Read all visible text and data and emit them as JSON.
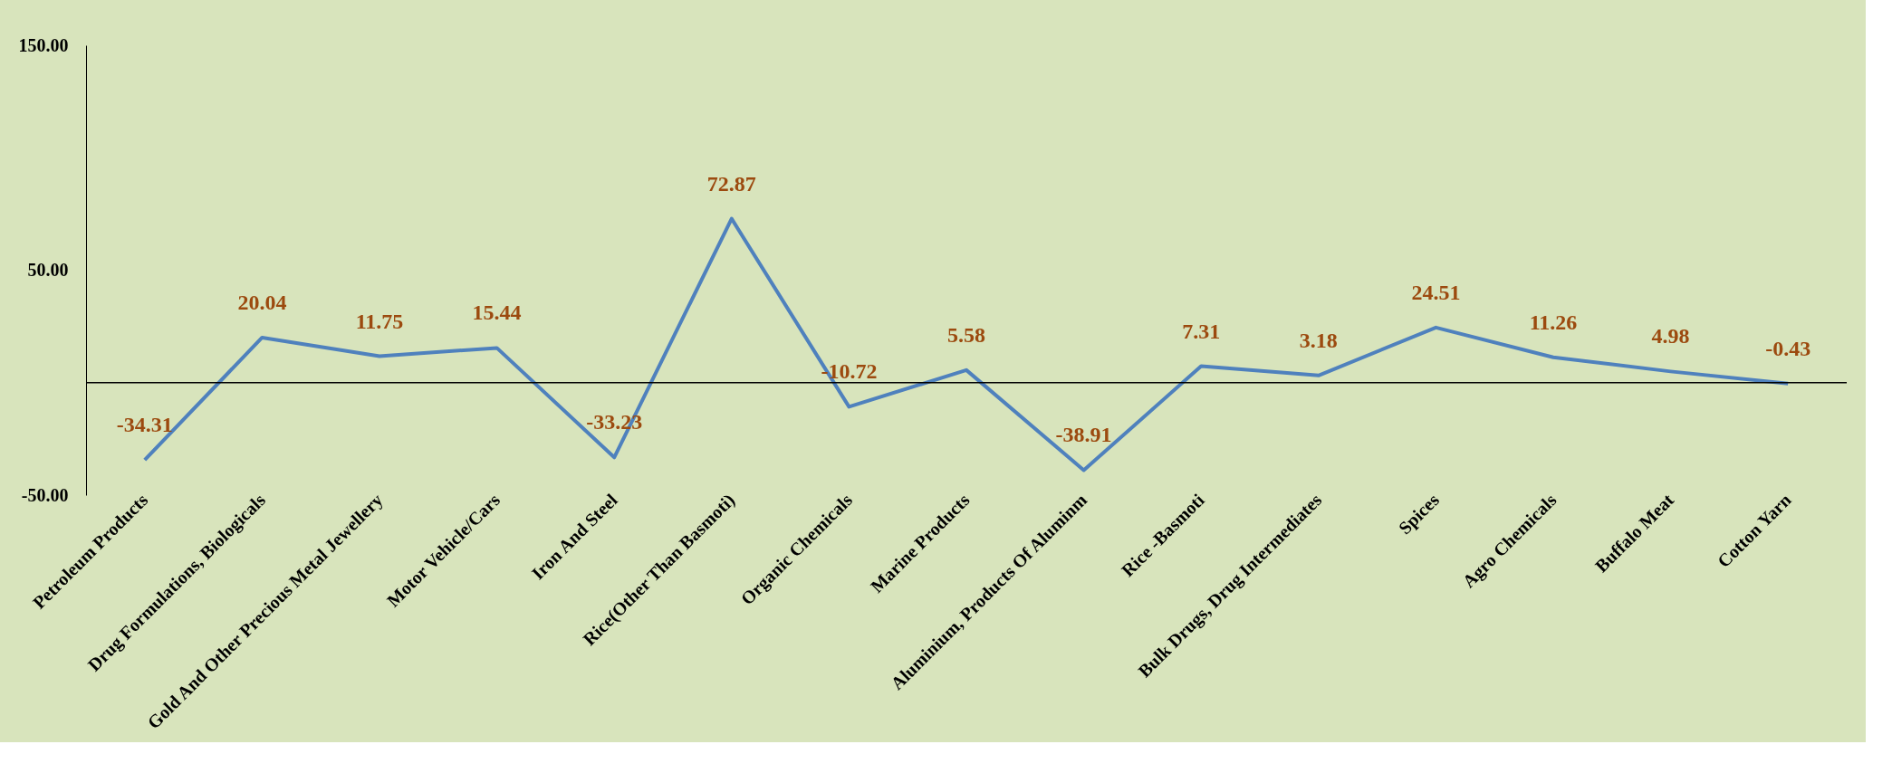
{
  "chart_data": {
    "type": "line",
    "categories": [
      "Petroleum Products",
      "Drug Formulations, Biologicals",
      "Gold And Other Precious Metal Jewellery",
      "Motor Vehicle/Cars",
      "Iron And Steel",
      "Rice(Other Than Basmoti)",
      "Organic Chemicals",
      "Marine Products",
      "Aluminium, Products Of Aluminm",
      "Rice -Basmoti",
      "Bulk Drugs, Drug Intermediates",
      "Spices",
      "Agro Chemicals",
      "Buffalo Meat",
      "Cotton Yarn"
    ],
    "series": [
      {
        "color": "#4f81bd",
        "values": [
          -34.31,
          20.04,
          11.75,
          15.44,
          -33.23,
          72.87,
          -10.72,
          5.58,
          -38.91,
          7.31,
          3.18,
          24.51,
          11.26,
          4.98,
          -0.43
        ]
      }
    ],
    "ylim": [
      -50,
      150
    ],
    "yticks": [
      {
        "value": -50,
        "label": "-50.00"
      },
      {
        "value": 50,
        "label": "50.00"
      },
      {
        "value": 150,
        "label": "150.00"
      }
    ],
    "data_labels": true,
    "grid": false,
    "legend": false,
    "marker": "none",
    "line_style": "solid"
  }
}
